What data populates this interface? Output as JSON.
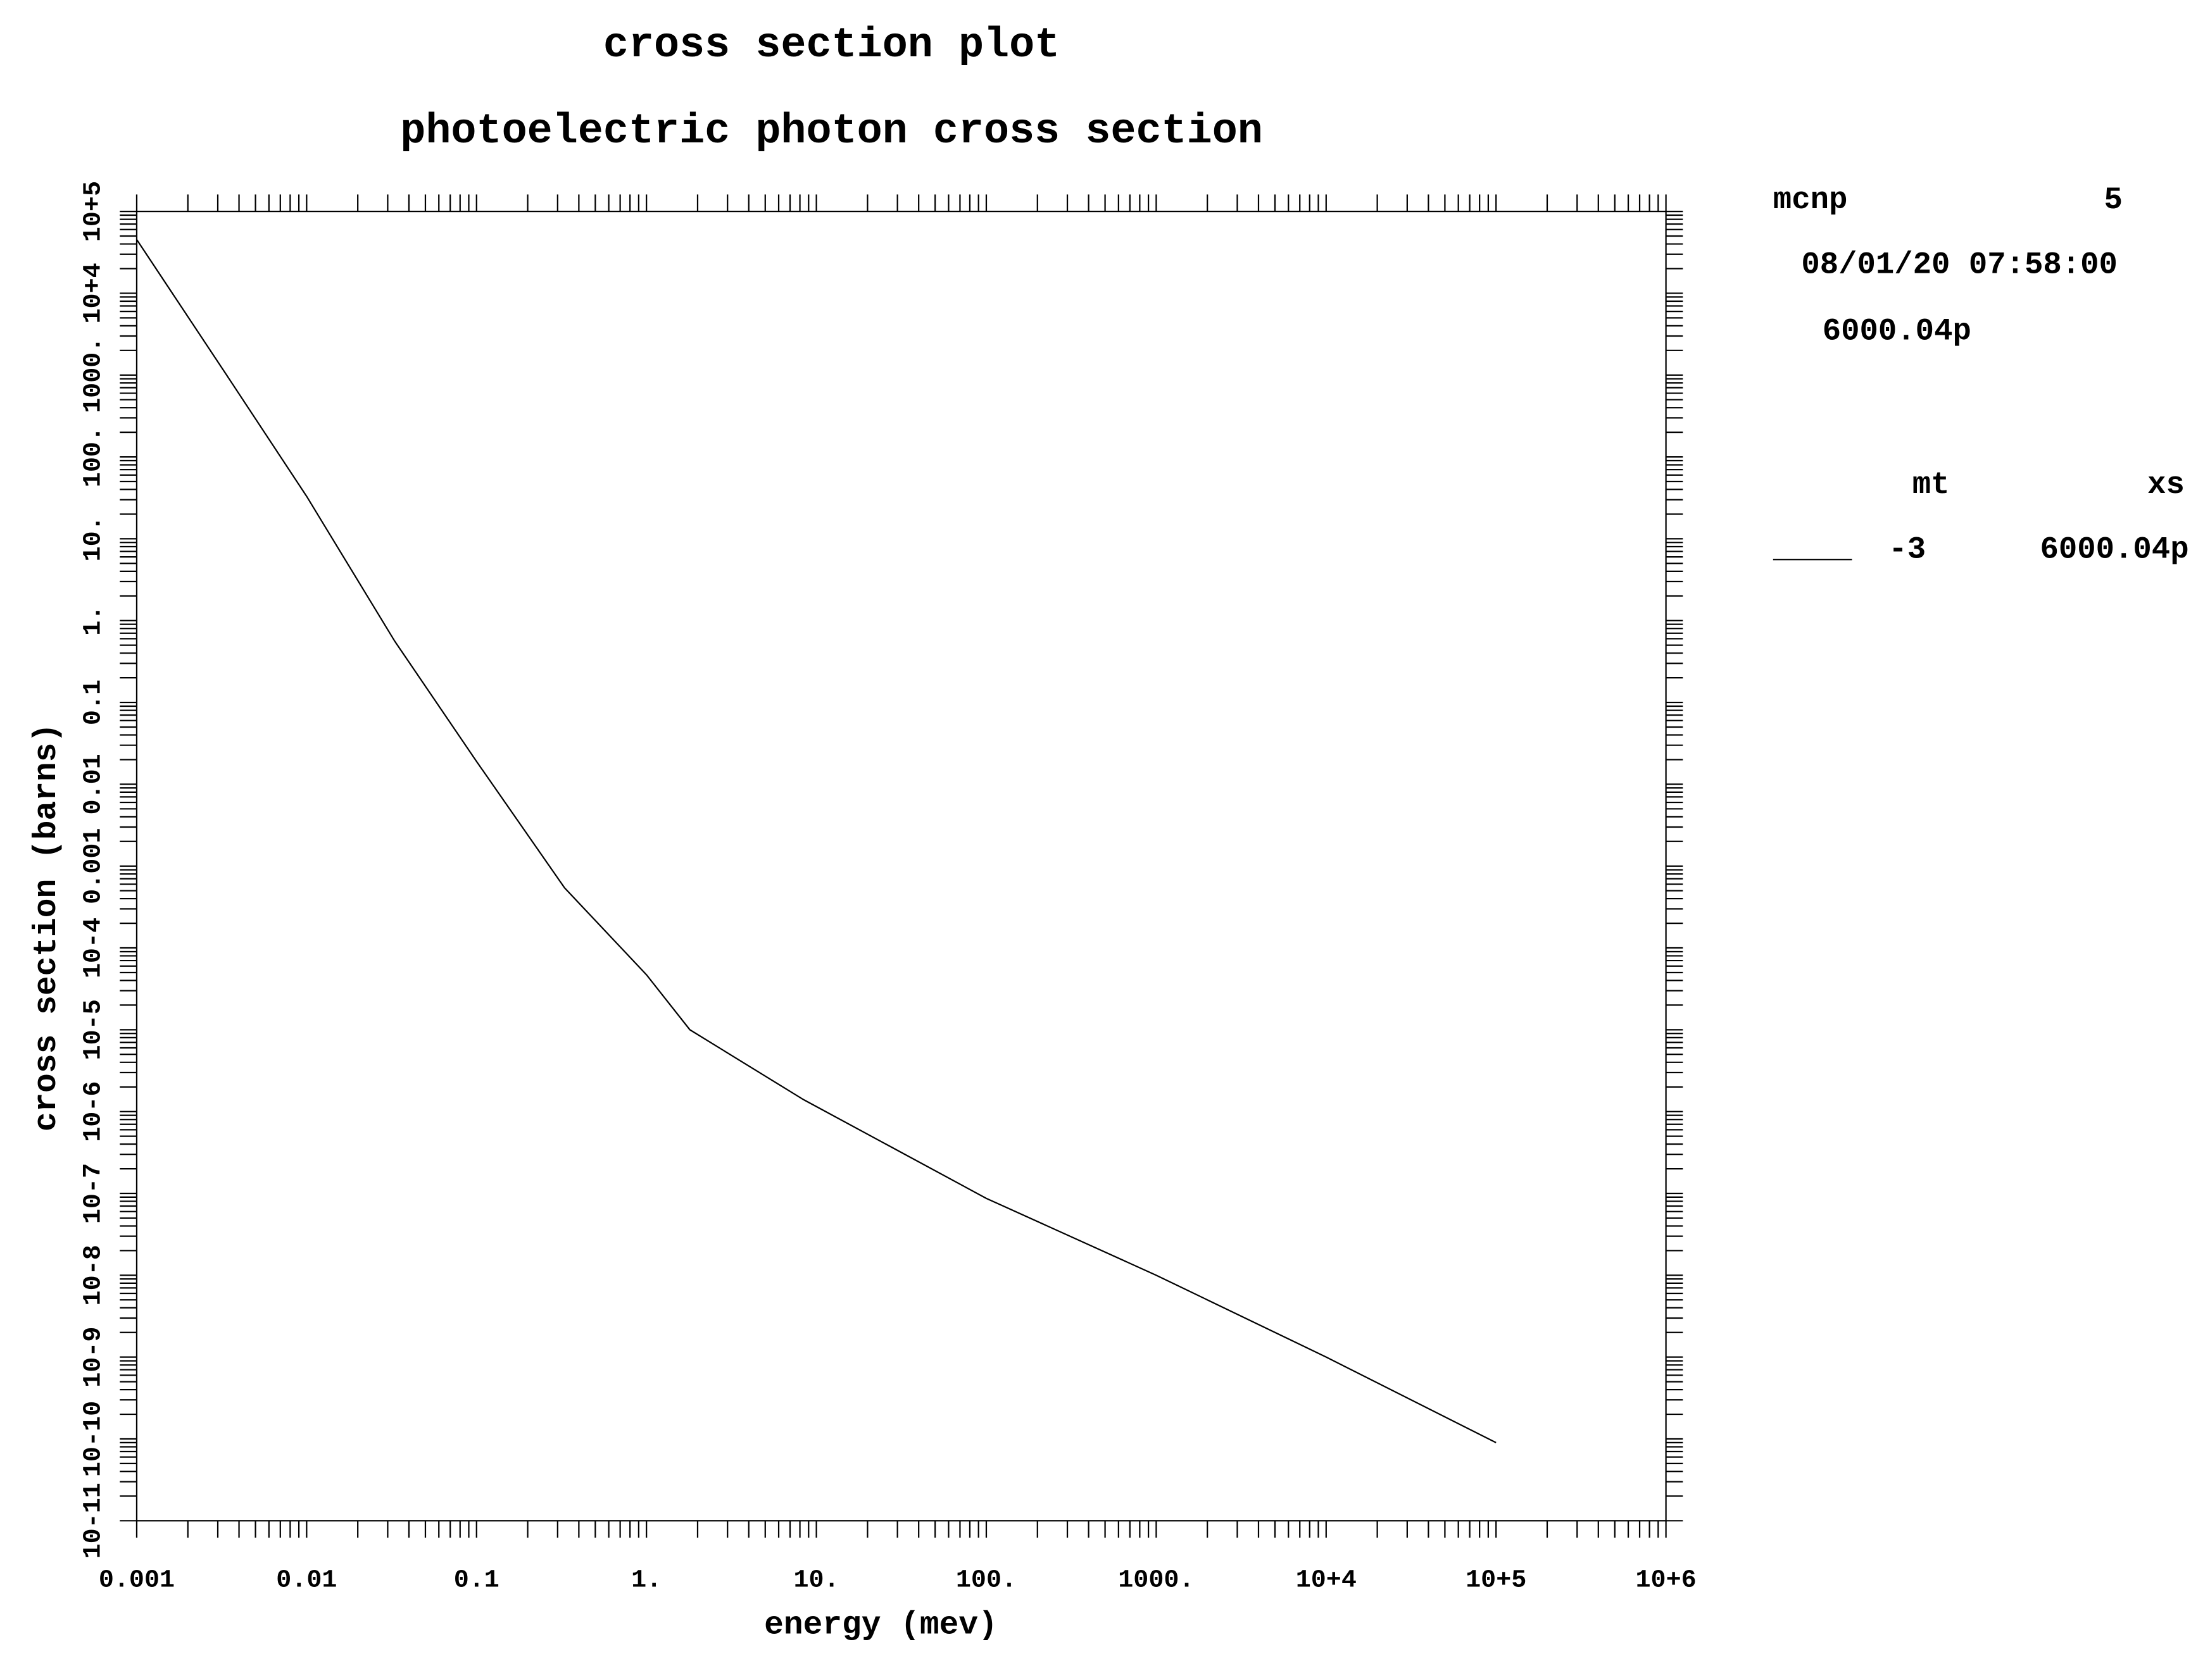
{
  "chart_data": {
    "type": "line",
    "title": "cross section plot",
    "subtitle": "photoelectric photon cross section",
    "x_label": "energy (mev)",
    "y_label": "cross section (barns)",
    "xscale": "log",
    "yscale": "log",
    "xlim": [
      0.001,
      1000000
    ],
    "ylim": [
      1e-11,
      100000
    ],
    "xticks": [
      0.001,
      0.01,
      0.1,
      {
        "value": 1,
        "label": "1."
      },
      {
        "value": 10,
        "label": "10."
      },
      {
        "value": 100,
        "label": "100."
      },
      {
        "value": 1000,
        "label": "1000."
      },
      {
        "value": 10000,
        "label": "10+4"
      },
      {
        "value": 100000,
        "label": "10+5"
      },
      {
        "value": 1000000,
        "label": "10+6"
      }
    ],
    "yticks": [
      {
        "value": 1e-11,
        "label": "10-11"
      },
      {
        "value": 1e-10,
        "label": "10-10"
      },
      {
        "value": 1e-09,
        "label": "10-9"
      },
      {
        "value": 1e-08,
        "label": "10-8"
      },
      {
        "value": 1e-07,
        "label": "10-7"
      },
      {
        "value": 1e-06,
        "label": "10-6"
      },
      {
        "value": 1e-05,
        "label": "10-5"
      },
      {
        "value": 0.0001,
        "label": "10-4"
      },
      0.001,
      0.01,
      0.1,
      {
        "value": 1,
        "label": "1."
      },
      {
        "value": 10,
        "label": "10."
      },
      {
        "value": 100,
        "label": "100."
      },
      {
        "value": 1000,
        "label": "1000."
      },
      {
        "value": 10000,
        "label": "10+4"
      },
      {
        "value": 100000,
        "label": "10+5"
      }
    ],
    "x": [
      0.001,
      0.00333,
      0.01,
      0.033,
      0.1,
      0.33,
      1,
      1.8,
      8.4,
      100,
      1000,
      10000,
      100000
    ],
    "series": [
      {
        "name": "6000.04p",
        "color": "#000000",
        "mt": "-3",
        "values": [
          45300,
          1050,
          33,
          0.56,
          0.019,
          0.00054,
          4.7e-05,
          1e-05,
          1.4e-06,
          8.7e-08,
          1e-08,
          1e-09,
          9e-11
        ]
      }
    ],
    "info": {
      "code": "mcnp",
      "version": "5",
      "date": "08/01/20 07:58:00",
      "library": "6000.04p"
    },
    "legend_headers": [
      "mt",
      "xs"
    ]
  }
}
